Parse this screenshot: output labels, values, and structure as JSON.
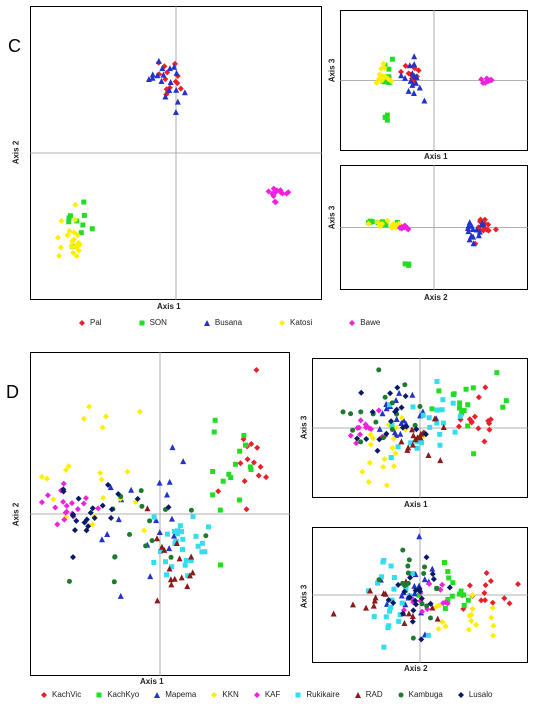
{
  "panels": {
    "C": {
      "letter": "C",
      "legend": [
        {
          "name": "Pal",
          "color": "#e8202a",
          "marker": "diamond"
        },
        {
          "name": "SON",
          "color": "#22dd22",
          "marker": "square"
        },
        {
          "name": "Busana",
          "color": "#2233cc",
          "marker": "triangle"
        },
        {
          "name": "Katosi",
          "color": "#ffee00",
          "marker": "diamond"
        },
        {
          "name": "Bawe",
          "color": "#ee22dd",
          "marker": "diamond"
        }
      ]
    },
    "D": {
      "letter": "D",
      "legend": [
        {
          "name": "KachVic",
          "color": "#e8202a",
          "marker": "diamond"
        },
        {
          "name": "KachKyo",
          "color": "#22dd22",
          "marker": "square"
        },
        {
          "name": "Mapema",
          "color": "#2233cc",
          "marker": "triangle"
        },
        {
          "name": "KKN",
          "color": "#ffee00",
          "marker": "diamond"
        },
        {
          "name": "KAF",
          "color": "#ee22dd",
          "marker": "diamond"
        },
        {
          "name": "Rukikaire",
          "color": "#33ddee",
          "marker": "square"
        },
        {
          "name": "RAD",
          "color": "#8b1a1a",
          "marker": "triangle"
        },
        {
          "name": "Kambuga",
          "color": "#1e7a2e",
          "marker": "circle"
        },
        {
          "name": "Lusalo",
          "color": "#0a1a66",
          "marker": "diamond"
        }
      ]
    }
  },
  "chart_data": [
    {
      "id": "C-main",
      "type": "scatter",
      "xlabel": "Axis 1",
      "ylabel": "Axis 2",
      "grid": false,
      "clusters": [
        {
          "series": "Pal",
          "cx": -0.05,
          "cy": 0.55,
          "sx": 0.05,
          "sy": 0.08,
          "n": 14
        },
        {
          "series": "Busana",
          "cx": -0.06,
          "cy": 0.52,
          "sx": 0.06,
          "sy": 0.09,
          "n": 18
        },
        {
          "series": "SON",
          "cx": -0.72,
          "cy": -0.52,
          "sx": 0.06,
          "sy": 0.08,
          "n": 10
        },
        {
          "series": "Katosi",
          "cx": -0.76,
          "cy": -0.6,
          "sx": 0.05,
          "sy": 0.1,
          "n": 22
        },
        {
          "series": "Bawe",
          "cx": 0.72,
          "cy": -0.3,
          "sx": 0.05,
          "sy": 0.04,
          "n": 14
        }
      ]
    },
    {
      "id": "C-13",
      "type": "scatter",
      "xlabel": "Axis 1",
      "ylabel": "Axis 3",
      "grid": false,
      "clusters": [
        {
          "series": "Pal",
          "cx": -0.28,
          "cy": 0.1,
          "sx": 0.06,
          "sy": 0.12,
          "n": 12
        },
        {
          "series": "Busana",
          "cx": -0.25,
          "cy": 0.0,
          "sx": 0.06,
          "sy": 0.2,
          "n": 16
        },
        {
          "series": "SON",
          "cx": -0.55,
          "cy": 0.1,
          "sx": 0.04,
          "sy": 0.1,
          "n": 10
        },
        {
          "series": "Katosi",
          "cx": -0.6,
          "cy": 0.05,
          "sx": 0.04,
          "sy": 0.1,
          "n": 14
        },
        {
          "series": "Bawe",
          "cx": 0.6,
          "cy": 0.0,
          "sx": 0.04,
          "sy": 0.02,
          "n": 10
        },
        {
          "series": "SON",
          "cx": -0.55,
          "cy": -0.65,
          "sx": 0.02,
          "sy": 0.04,
          "n": 3
        }
      ]
    },
    {
      "id": "C-23",
      "type": "scatter",
      "xlabel": "Axis 2",
      "ylabel": "Axis 3",
      "grid": false,
      "clusters": [
        {
          "series": "Pal",
          "cx": 0.6,
          "cy": 0.05,
          "sx": 0.08,
          "sy": 0.1,
          "n": 14
        },
        {
          "series": "Busana",
          "cx": 0.5,
          "cy": -0.05,
          "sx": 0.08,
          "sy": 0.12,
          "n": 16
        },
        {
          "series": "SON",
          "cx": -0.65,
          "cy": 0.1,
          "sx": 0.1,
          "sy": 0.05,
          "n": 10
        },
        {
          "series": "Katosi",
          "cx": -0.55,
          "cy": 0.05,
          "sx": 0.12,
          "sy": 0.04,
          "n": 14
        },
        {
          "series": "Bawe",
          "cx": -0.35,
          "cy": 0.0,
          "sx": 0.03,
          "sy": 0.02,
          "n": 10
        },
        {
          "series": "SON",
          "cx": -0.3,
          "cy": -0.7,
          "sx": 0.03,
          "sy": 0.03,
          "n": 3
        }
      ]
    },
    {
      "id": "D-main",
      "type": "scatter",
      "xlabel": "Axis 1",
      "ylabel": "Axis 2",
      "grid": false,
      "clusters": [
        {
          "series": "KachVic",
          "cx": 0.75,
          "cy": 0.35,
          "sx": 0.1,
          "sy": 0.2,
          "n": 14
        },
        {
          "series": "KachKyo",
          "cx": 0.55,
          "cy": 0.25,
          "sx": 0.15,
          "sy": 0.25,
          "n": 16
        },
        {
          "series": "Mapema",
          "cx": -0.1,
          "cy": 0.0,
          "sx": 0.25,
          "sy": 0.25,
          "n": 20
        },
        {
          "series": "KKN",
          "cx": -0.55,
          "cy": 0.2,
          "sx": 0.2,
          "sy": 0.25,
          "n": 20
        },
        {
          "series": "KAF",
          "cx": -0.75,
          "cy": 0.05,
          "sx": 0.1,
          "sy": 0.05,
          "n": 18
        },
        {
          "series": "Rukikaire",
          "cx": 0.2,
          "cy": -0.15,
          "sx": 0.15,
          "sy": 0.12,
          "n": 28
        },
        {
          "series": "RAD",
          "cx": 0.1,
          "cy": -0.25,
          "sx": 0.12,
          "sy": 0.15,
          "n": 16
        },
        {
          "series": "Kambuga",
          "cx": -0.3,
          "cy": -0.1,
          "sx": 0.3,
          "sy": 0.2,
          "n": 16
        },
        {
          "series": "Lusalo",
          "cx": -0.6,
          "cy": 0.0,
          "sx": 0.2,
          "sy": 0.12,
          "n": 22
        }
      ]
    },
    {
      "id": "D-13",
      "type": "scatter",
      "xlabel": "Axis 1",
      "ylabel": "Axis 3",
      "grid": false,
      "clusters": [
        {
          "series": "KachVic",
          "cx": 0.55,
          "cy": 0.15,
          "sx": 0.12,
          "sy": 0.2,
          "n": 14
        },
        {
          "series": "KachKyo",
          "cx": 0.45,
          "cy": 0.25,
          "sx": 0.15,
          "sy": 0.3,
          "n": 16
        },
        {
          "series": "Mapema",
          "cx": -0.2,
          "cy": 0.15,
          "sx": 0.2,
          "sy": 0.3,
          "n": 18
        },
        {
          "series": "KKN",
          "cx": -0.35,
          "cy": -0.25,
          "sx": 0.2,
          "sy": 0.3,
          "n": 18
        },
        {
          "series": "KAF",
          "cx": -0.55,
          "cy": 0.0,
          "sx": 0.12,
          "sy": 0.15,
          "n": 14
        },
        {
          "series": "Rukikaire",
          "cx": 0.05,
          "cy": -0.05,
          "sx": 0.15,
          "sy": 0.35,
          "n": 24
        },
        {
          "series": "RAD",
          "cx": 0.0,
          "cy": -0.2,
          "sx": 0.12,
          "sy": 0.2,
          "n": 16
        },
        {
          "series": "Kambuga",
          "cx": -0.35,
          "cy": 0.2,
          "sx": 0.2,
          "sy": 0.35,
          "n": 16
        },
        {
          "series": "Lusalo",
          "cx": -0.35,
          "cy": 0.1,
          "sx": 0.2,
          "sy": 0.3,
          "n": 18
        }
      ]
    },
    {
      "id": "D-23",
      "type": "scatter",
      "xlabel": "Axis 2",
      "ylabel": "Axis 3",
      "grid": false,
      "clusters": [
        {
          "series": "KachVic",
          "cx": 0.6,
          "cy": 0.0,
          "sx": 0.2,
          "sy": 0.2,
          "n": 14
        },
        {
          "series": "KachKyo",
          "cx": 0.35,
          "cy": 0.2,
          "sx": 0.25,
          "sy": 0.25,
          "n": 14
        },
        {
          "series": "Mapema",
          "cx": -0.05,
          "cy": 0.1,
          "sx": 0.15,
          "sy": 0.35,
          "n": 18
        },
        {
          "series": "KKN",
          "cx": 0.45,
          "cy": -0.3,
          "sx": 0.2,
          "sy": 0.2,
          "n": 16
        },
        {
          "series": "KAF",
          "cx": 0.15,
          "cy": 0.0,
          "sx": 0.2,
          "sy": 0.15,
          "n": 14
        },
        {
          "series": "Rukikaire",
          "cx": -0.25,
          "cy": -0.1,
          "sx": 0.15,
          "sy": 0.35,
          "n": 24
        },
        {
          "series": "RAD",
          "cx": -0.3,
          "cy": -0.15,
          "sx": 0.25,
          "sy": 0.2,
          "n": 16
        },
        {
          "series": "Kambuga",
          "cx": -0.1,
          "cy": 0.1,
          "sx": 0.2,
          "sy": 0.4,
          "n": 16
        },
        {
          "series": "Lusalo",
          "cx": -0.05,
          "cy": 0.05,
          "sx": 0.15,
          "sy": 0.3,
          "n": 22
        }
      ]
    }
  ]
}
